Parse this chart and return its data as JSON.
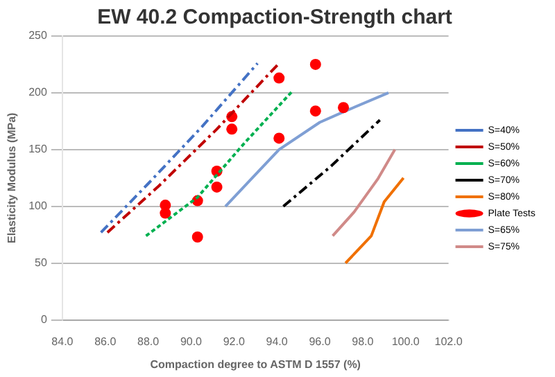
{
  "chart_data": {
    "type": "line",
    "title": "EW 40.2 Compaction-Strength chart",
    "xlabel": "Compaction degree to ASTM D 1557 (%)",
    "ylabel": "Elasticity Modulus (MPa)",
    "xlim": [
      84,
      102
    ],
    "xticks": [
      {
        "value": 84,
        "label": "84.0"
      },
      {
        "value": 86,
        "label": "86.0"
      },
      {
        "value": 88,
        "label": "88.0"
      },
      {
        "value": 90,
        "label": "90.0"
      },
      {
        "value": 92,
        "label": "92.0"
      },
      {
        "value": 94,
        "label": "94.0"
      },
      {
        "value": 96,
        "label": "96.0"
      },
      {
        "value": 98,
        "label": "98.0"
      },
      {
        "value": 100,
        "label": "100.0"
      },
      {
        "value": 102,
        "label": "102.0"
      }
    ],
    "ylim": [
      0,
      250
    ],
    "yticks": [
      0,
      50,
      100,
      150,
      200,
      250
    ],
    "grid": "y",
    "legend": "right",
    "marker": "none",
    "series": [
      {
        "name": "S=40%",
        "color": "#4472c4",
        "line_style": "dashed",
        "x": [
          85.8,
          88.0,
          90.5,
          93.1
        ],
        "values": [
          77,
          120,
          170,
          226
        ]
      },
      {
        "name": "S=50%",
        "color": "#c00000",
        "line_style": "dashed",
        "x": [
          86.1,
          88.5,
          91.2,
          94.1
        ],
        "values": [
          77,
          118,
          168,
          226
        ]
      },
      {
        "name": "S=60%",
        "color": "#00b050",
        "line_style": "dotted",
        "x": [
          87.9,
          90.3,
          92.5,
          94.7
        ],
        "values": [
          74,
          108,
          156,
          201
        ]
      },
      {
        "name": "S=70%",
        "color": "#000000",
        "line_style": "dashed",
        "x": [
          94.3,
          96.5,
          98.8
        ],
        "values": [
          100,
          135,
          176
        ]
      },
      {
        "name": "S=80%",
        "color": "#f07000",
        "line_style": "solid",
        "x": [
          97.2,
          98.4,
          99.0,
          99.9
        ],
        "values": [
          50,
          74,
          104,
          125
        ]
      },
      {
        "name": "Plate Tests",
        "type": "scatter",
        "marker": "circle",
        "color": "#ff0000",
        "x": [
          88.8,
          88.8,
          90.3,
          90.3,
          91.2,
          91.2,
          91.9,
          91.9,
          94.1,
          94.1,
          95.8,
          95.8,
          97.1
        ],
        "values": [
          101,
          94,
          73,
          105,
          117,
          131,
          168,
          179,
          213,
          160,
          225,
          184,
          187
        ]
      },
      {
        "name": "S=65%",
        "color": "#7f9fd4",
        "line_style": "solid",
        "x": [
          91.6,
          92.9,
          94.1,
          96.0,
          97.2,
          99.2
        ],
        "values": [
          100,
          126,
          150,
          174,
          184,
          200
        ]
      },
      {
        "name": "S=75%",
        "color": "#d08a88",
        "line_style": "solid",
        "x": [
          96.6,
          97.6,
          98.7,
          99.5
        ],
        "values": [
          74,
          95,
          124,
          150
        ]
      }
    ]
  }
}
